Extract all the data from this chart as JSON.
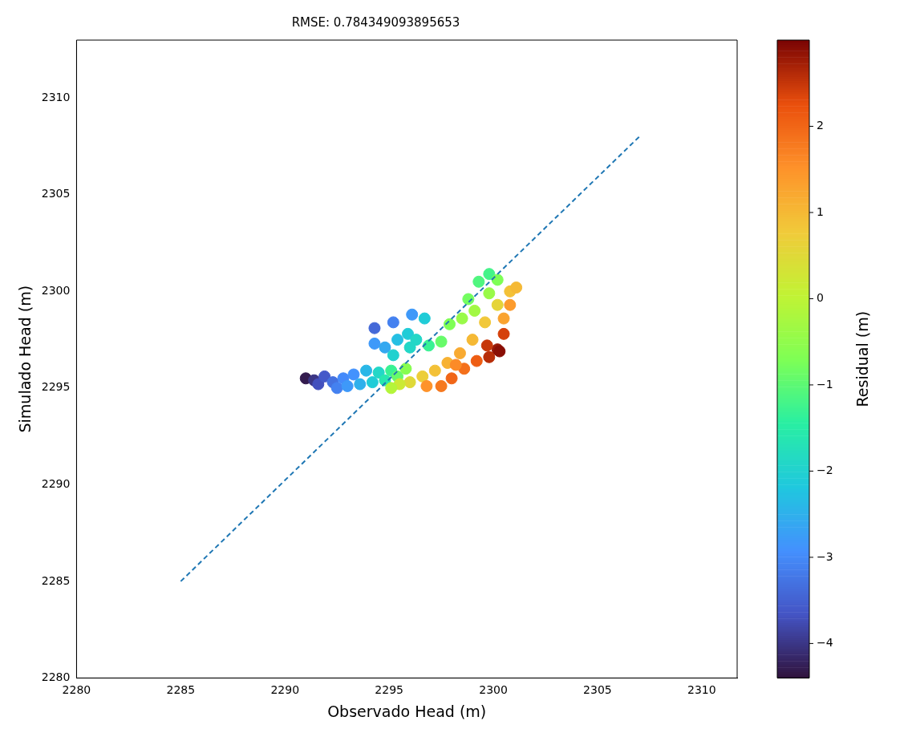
{
  "chart_data": {
    "type": "scatter",
    "title": "RMSE: 0.784349093895653",
    "xlabel": "Observado Head (m)",
    "ylabel": "Simulado Head (m)",
    "clabel": "Residual (m)",
    "xlim": [
      2280,
      2311.7
    ],
    "ylim": [
      2280,
      2313
    ],
    "xticks": [
      2280,
      2285,
      2290,
      2295,
      2300,
      2305,
      2310
    ],
    "yticks": [
      2280,
      2285,
      2290,
      2295,
      2300,
      2305,
      2310
    ],
    "clim": [
      -4.4,
      3.0
    ],
    "cticks": [
      -4,
      -3,
      -2,
      -1,
      0,
      1,
      2
    ],
    "grid": false,
    "legend": false,
    "series": [
      {
        "type": "scatter",
        "marker": "circle",
        "colors": [
          "#331b4e",
          "#3b3685",
          "#4350bd",
          "#4459c9",
          "#4471e0",
          "#4481f0",
          "#448afb",
          "#3e99f9",
          "#4392fd",
          "#2fb0ec",
          "#2ab7e7",
          "#20ccd7",
          "#23d7c7",
          "#27e7af",
          "#39f293",
          "#67fb6a",
          "#87fd50",
          "#4469d8",
          "#4481f0",
          "#3e99f9",
          "#20ccd7",
          "#3e99f9",
          "#34a8f0",
          "#25bfe3",
          "#20ccd7",
          "#23d7c7",
          "#23d7c7",
          "#21d1cf",
          "#39f293",
          "#67fb6a",
          "#7eff55",
          "#99fa48",
          "#73fd60",
          "#50f67f",
          "#44f489",
          "#7eff55",
          "#a2f843",
          "#99fa48",
          "#dfd938",
          "#ecce39",
          "#f3c137",
          "#f7b233",
          "#f8aa31",
          "#f5b935",
          "#f1c83a",
          "#e5d439",
          "#f3c137",
          "#f5b935",
          "#faa32f",
          "#fc9b2d",
          "#fe932a",
          "#f6791f",
          "#f16617",
          "#f4701b",
          "#ee5d13",
          "#b72d08",
          "#981806",
          "#d5410b",
          "#c6370a",
          "#890e04",
          "#fc8b27",
          "#cbea35",
          "#b4f53a"
        ],
        "x": [
          2291.0,
          2291.4,
          2291.6,
          2291.9,
          2292.3,
          2292.5,
          2292.8,
          2293.0,
          2293.3,
          2293.6,
          2293.9,
          2294.2,
          2294.5,
          2294.8,
          2295.1,
          2295.4,
          2295.8,
          2294.3,
          2295.2,
          2296.1,
          2296.7,
          2294.3,
          2294.8,
          2295.4,
          2295.9,
          2296.3,
          2296.0,
          2295.2,
          2296.9,
          2297.5,
          2297.9,
          2298.5,
          2298.8,
          2299.3,
          2299.8,
          2300.2,
          2299.1,
          2299.8,
          2296.0,
          2296.6,
          2297.2,
          2297.8,
          2298.4,
          2299.0,
          2299.6,
          2300.2,
          2300.8,
          2301.1,
          2300.5,
          2300.8,
          2296.8,
          2297.5,
          2298.0,
          2298.6,
          2299.2,
          2299.8,
          2300.2,
          2300.5,
          2299.7,
          2300.3,
          2298.2,
          2295.5,
          2295.1
        ],
        "values": [
          2295.5,
          2295.4,
          2295.2,
          2295.6,
          2295.3,
          2295.0,
          2295.5,
          2295.1,
          2295.7,
          2295.2,
          2295.9,
          2295.3,
          2295.8,
          2295.4,
          2295.9,
          2295.6,
          2296.0,
          2298.1,
          2298.4,
          2298.8,
          2298.6,
          2297.3,
          2297.1,
          2297.5,
          2297.8,
          2297.5,
          2297.1,
          2296.7,
          2297.2,
          2297.4,
          2298.3,
          2298.6,
          2299.6,
          2300.5,
          2300.9,
          2300.6,
          2299.0,
          2299.9,
          2295.3,
          2295.6,
          2295.9,
          2296.3,
          2296.8,
          2297.5,
          2298.4,
          2299.3,
          2300.0,
          2300.2,
          2298.6,
          2299.3,
          2295.1,
          2295.1,
          2295.5,
          2296.0,
          2296.4,
          2296.6,
          2297.0,
          2297.8,
          2297.2,
          2296.9,
          2296.2,
          2295.2,
          2295.0
        ],
        "cvalues": [
          -4.3,
          -4.0,
          -3.7,
          -3.6,
          -3.3,
          -3.1,
          -3.0,
          -2.8,
          -2.9,
          -2.5,
          -2.4,
          -2.1,
          -1.9,
          -1.6,
          -1.3,
          -0.9,
          -0.6,
          -3.4,
          -3.1,
          -2.8,
          -2.1,
          -2.8,
          -2.6,
          -2.3,
          -2.1,
          -1.9,
          -1.9,
          -2.0,
          -1.3,
          -0.9,
          -0.7,
          -0.4,
          -0.8,
          -1.1,
          -1.2,
          -0.7,
          -0.3,
          -0.4,
          0.5,
          0.7,
          0.9,
          1.1,
          1.2,
          1.0,
          0.8,
          0.6,
          0.9,
          1.0,
          1.3,
          1.4,
          1.5,
          1.8,
          2.0,
          1.9,
          2.1,
          2.6,
          2.8,
          2.4,
          2.5,
          2.9,
          1.6,
          0.2,
          -0.1
        ]
      },
      {
        "type": "line",
        "color": "#1f77b4",
        "line_style": "dashed",
        "marker": "none",
        "x": [
          2285,
          2307
        ],
        "values": [
          2285,
          2308
        ]
      }
    ]
  }
}
